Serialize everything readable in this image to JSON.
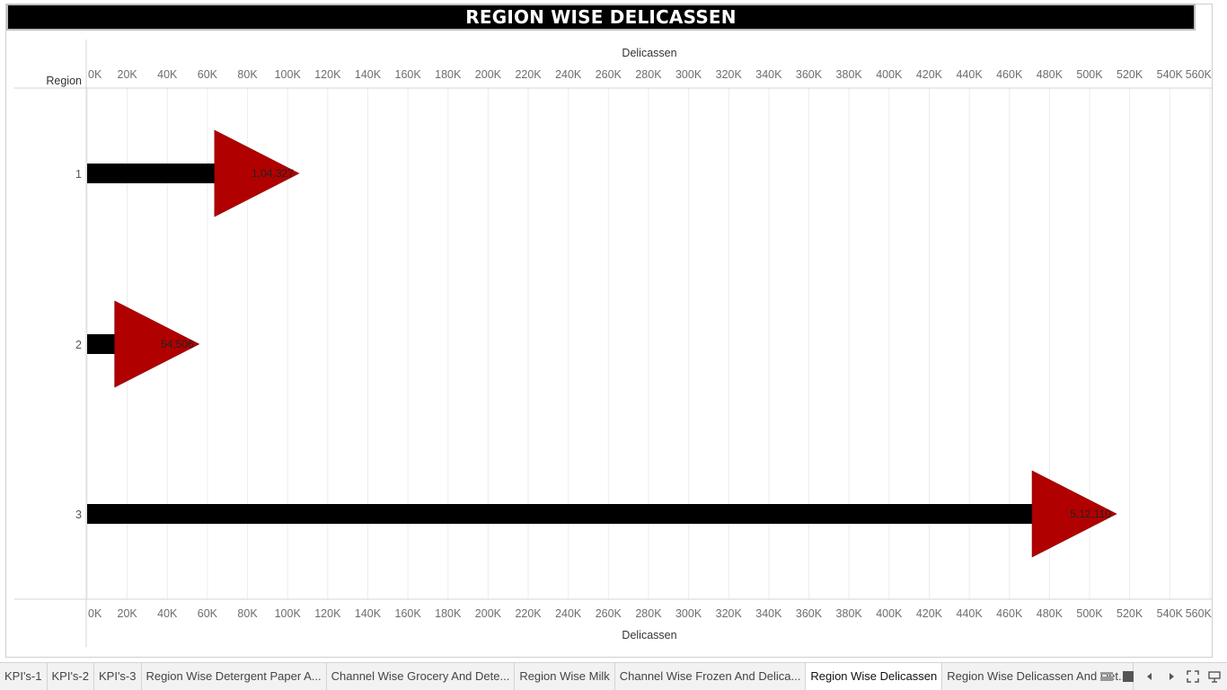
{
  "title": "REGION WISE DELICASSEN",
  "chart_data": {
    "type": "bar",
    "title": "REGION WISE DELICASSEN",
    "xlabel": "Delicassen",
    "ylabel": "Region",
    "categories": [
      "1",
      "2",
      "3"
    ],
    "values": [
      104327,
      54506,
      512110
    ],
    "data_labels": [
      "1,04,327",
      "54,506",
      "5,12,110"
    ],
    "xlim": [
      0,
      560000
    ],
    "ticks": [
      0,
      20000,
      40000,
      60000,
      80000,
      100000,
      120000,
      140000,
      160000,
      180000,
      200000,
      220000,
      240000,
      260000,
      280000,
      300000,
      320000,
      340000,
      360000,
      380000,
      400000,
      420000,
      440000,
      460000,
      480000,
      500000,
      520000,
      540000,
      560000
    ],
    "tick_labels": [
      "0K",
      "20K",
      "40K",
      "60K",
      "80K",
      "100K",
      "120K",
      "140K",
      "160K",
      "180K",
      "200K",
      "220K",
      "240K",
      "260K",
      "280K",
      "300K",
      "320K",
      "340K",
      "360K",
      "380K",
      "400K",
      "420K",
      "440K",
      "460K",
      "480K",
      "500K",
      "520K",
      "540K",
      "560K"
    ],
    "bar_color": "#000000",
    "marker_color": "#b00000",
    "grid": true
  },
  "tabs": [
    {
      "label": "KPI's-1"
    },
    {
      "label": "KPI's-2"
    },
    {
      "label": "KPI's-3"
    },
    {
      "label": "Region Wise Detergent Paper A..."
    },
    {
      "label": "Channel Wise Grocery And Dete..."
    },
    {
      "label": "Region Wise Milk"
    },
    {
      "label": "Channel Wise Frozen And Delica..."
    },
    {
      "label": "Region Wise Delicassen",
      "active": true
    },
    {
      "label": "Region Wise Delicassen And Det..."
    }
  ]
}
